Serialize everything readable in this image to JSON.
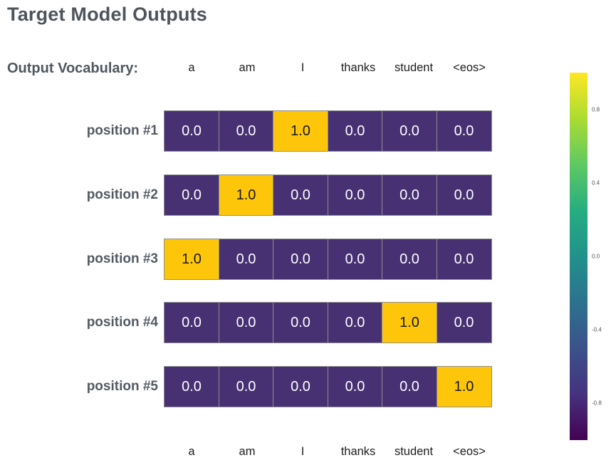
{
  "title": "Target Model Outputs",
  "vocab_label": "Output Vocabulary:",
  "colors": {
    "cell_on": "#fdc60a",
    "cell_off": "#473173",
    "cell_on_text": "#161616",
    "cell_off_text": "#ffffff",
    "cell_border": "#8f8f8f",
    "viridis_stops": [
      "#fde725",
      "#aadc32",
      "#5ec962",
      "#27ad81",
      "#21918c",
      "#2c728e",
      "#3b528b",
      "#46327e",
      "#440154"
    ]
  },
  "chart_data": {
    "type": "heatmap",
    "title": "Target Model Outputs",
    "x_categories": [
      "a",
      "am",
      "I",
      "thanks",
      "student",
      "<eos>"
    ],
    "y_categories": [
      "position #1",
      "position #2",
      "position #3",
      "position #4",
      "position #5"
    ],
    "values": [
      [
        0.0,
        0.0,
        1.0,
        0.0,
        0.0,
        0.0
      ],
      [
        0.0,
        1.0,
        0.0,
        0.0,
        0.0,
        0.0
      ],
      [
        1.0,
        0.0,
        0.0,
        0.0,
        0.0,
        0.0
      ],
      [
        0.0,
        0.0,
        0.0,
        0.0,
        1.0,
        0.0
      ],
      [
        0.0,
        0.0,
        0.0,
        0.0,
        0.0,
        1.0
      ]
    ],
    "value_labels": [
      [
        "0.0",
        "0.0",
        "1.0",
        "0.0",
        "0.0",
        "0.0"
      ],
      [
        "0.0",
        "1.0",
        "0.0",
        "0.0",
        "0.0",
        "0.0"
      ],
      [
        "1.0",
        "0.0",
        "0.0",
        "0.0",
        "0.0",
        "0.0"
      ],
      [
        "0.0",
        "0.0",
        "0.0",
        "0.0",
        "1.0",
        "0.0"
      ],
      [
        "0.0",
        "0.0",
        "0.0",
        "0.0",
        "0.0",
        "1.0"
      ]
    ],
    "colormap": "viridis",
    "grid": false,
    "colorbar": {
      "position": "right",
      "range": [
        -1,
        1
      ],
      "ticks": [
        {
          "label": "0.8",
          "value": 0.8
        },
        {
          "label": "0.4",
          "value": 0.4
        },
        {
          "label": "0.0",
          "value": 0.0
        },
        {
          "label": "-0.4",
          "value": -0.4
        },
        {
          "label": "-0.8",
          "value": -0.8
        }
      ]
    }
  }
}
